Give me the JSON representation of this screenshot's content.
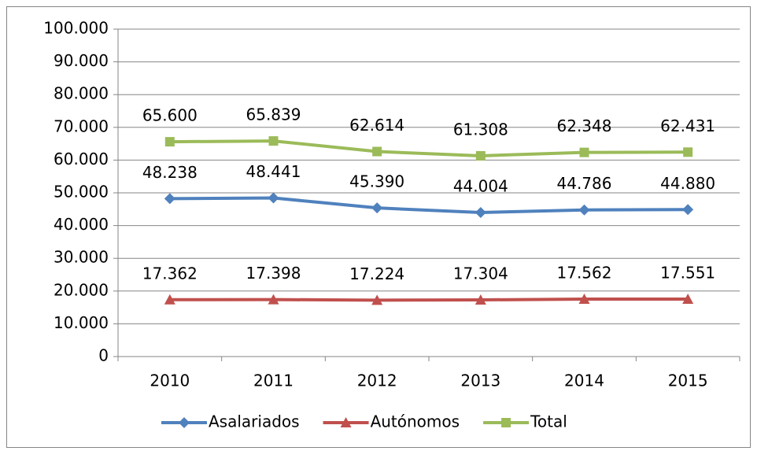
{
  "chart_data": {
    "type": "line",
    "categories": [
      "2010",
      "2011",
      "2012",
      "2013",
      "2014",
      "2015"
    ],
    "series": [
      {
        "name": "Asalariados",
        "color": "#4f81bd",
        "marker": "diamond",
        "values": [
          48238,
          48441,
          45390,
          44004,
          44786,
          44880
        ],
        "value_labels": [
          "48.238",
          "48.441",
          "45.390",
          "44.004",
          "44.786",
          "44.880"
        ]
      },
      {
        "name": "Autónomos",
        "color": "#c0504d",
        "marker": "triangle",
        "values": [
          17362,
          17398,
          17224,
          17304,
          17562,
          17551
        ],
        "value_labels": [
          "17.362",
          "17.398",
          "17.224",
          "17.304",
          "17.562",
          "17.551"
        ]
      },
      {
        "name": "Total",
        "color": "#9bbb59",
        "marker": "square",
        "values": [
          65600,
          65839,
          62614,
          61308,
          62348,
          62431
        ],
        "value_labels": [
          "65.600",
          "65.839",
          "62.614",
          "61.308",
          "62.348",
          "62.431"
        ]
      }
    ],
    "ylim": [
      0,
      100000
    ],
    "yticks": [
      0,
      {
        "value": 10000,
        "label": "10.000"
      },
      {
        "value": 20000,
        "label": "20.000"
      },
      {
        "value": 30000,
        "label": "30.000"
      },
      {
        "value": 40000,
        "label": "40.000"
      },
      {
        "value": 50000,
        "label": "50.000"
      },
      {
        "value": 60000,
        "label": "60.000"
      },
      {
        "value": 70000,
        "label": "70.000"
      },
      {
        "value": 80000,
        "label": "80.000"
      },
      {
        "value": 90000,
        "label": "90.000"
      },
      {
        "value": 100000,
        "label": "100.000"
      }
    ],
    "grid": true,
    "legend": "bottom"
  }
}
